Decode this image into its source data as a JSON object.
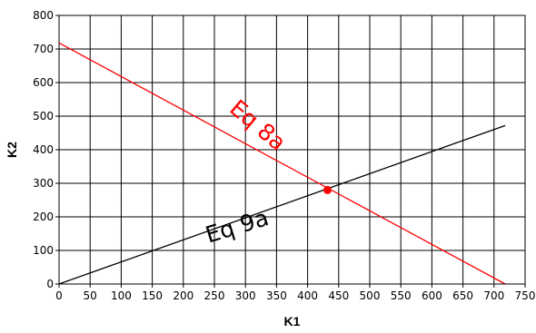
{
  "chart_data": {
    "type": "line",
    "xlabel": "K1",
    "ylabel": "K2",
    "xlim": [
      0,
      750
    ],
    "ylim": [
      0,
      800
    ],
    "xticks": [
      0,
      50,
      100,
      150,
      200,
      250,
      300,
      350,
      400,
      450,
      500,
      550,
      600,
      650,
      700,
      750
    ],
    "yticks": [
      0,
      100,
      200,
      300,
      400,
      500,
      600,
      700,
      800
    ],
    "grid": true,
    "series": [
      {
        "name": "Eq 8a",
        "color": "#ff0000",
        "x": [
          0,
          718
        ],
        "y": [
          718,
          0
        ]
      },
      {
        "name": "Eq 9a",
        "color": "#000000",
        "x": [
          0,
          718
        ],
        "y": [
          0,
          472
        ]
      }
    ],
    "points": [
      {
        "x": 432,
        "y": 280,
        "color": "#ff0000"
      }
    ],
    "annotations": [
      {
        "text": "Eq 8a",
        "color": "#ff0000",
        "x": 312,
        "y": 455,
        "angle": 40
      },
      {
        "text": "Eq 9a",
        "color": "#000000",
        "x": 290,
        "y": 150,
        "angle": -17
      }
    ]
  }
}
